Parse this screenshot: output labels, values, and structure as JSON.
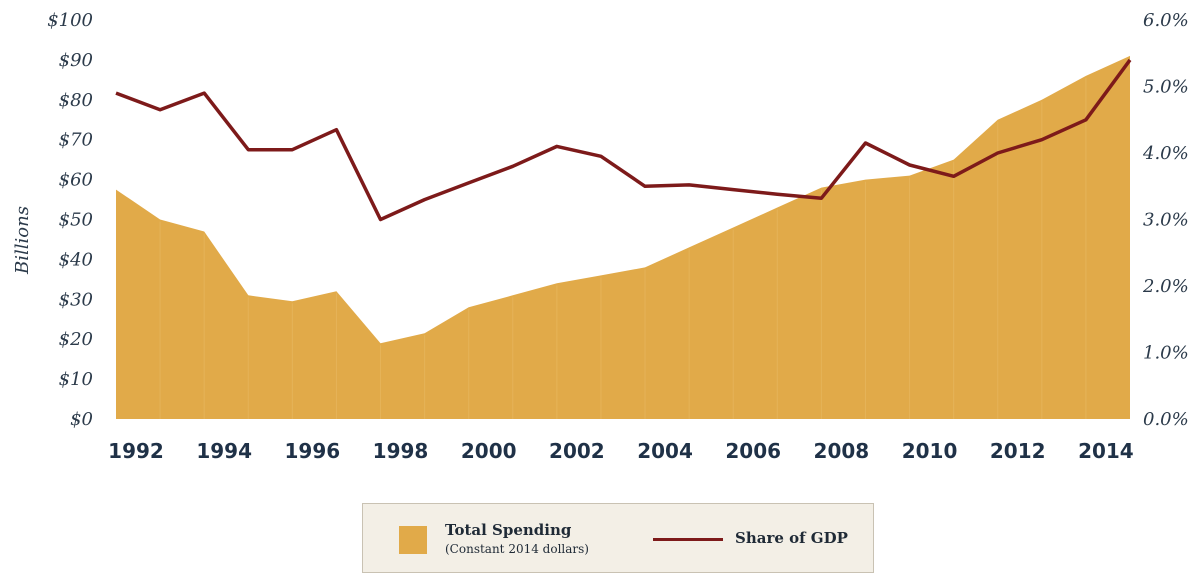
{
  "chart_data": {
    "type": "area",
    "years": [
      1992,
      1993,
      1994,
      1995,
      1996,
      1997,
      1998,
      1999,
      2000,
      2001,
      2002,
      2003,
      2004,
      2005,
      2006,
      2007,
      2008,
      2009,
      2010,
      2011,
      2012,
      2013,
      2014,
      2015
    ],
    "x_tick_labels": [
      "1992",
      "1994",
      "1996",
      "1998",
      "2000",
      "2002",
      "2004",
      "2006",
      "2008",
      "2010",
      "2012",
      "2014"
    ],
    "ylabel": "Billions",
    "y_tick_labels": [
      "$0",
      "$10",
      "$20",
      "$30",
      "$40",
      "$50",
      "$60",
      "$70",
      "$80",
      "$90",
      "$100"
    ],
    "y2_tick_labels": [
      "0.0%",
      "1.0%",
      "2.0%",
      "3.0%",
      "4.0%",
      "5.0%",
      "6.0%"
    ],
    "ylim": [
      0,
      100
    ],
    "y2lim": [
      0,
      6
    ],
    "grid": false,
    "legend_position": "bottom-center",
    "series": [
      {
        "name": "Total Spending",
        "subtitle": "(Constant 2014 dollars)",
        "type": "area",
        "axis": "left",
        "color": "#E1AA49",
        "values": [
          57.5,
          50,
          47,
          31,
          29.5,
          32,
          19,
          21.5,
          28,
          31,
          34,
          36,
          38,
          43,
          48,
          53,
          58,
          60,
          61,
          65,
          75,
          80,
          86,
          91
        ]
      },
      {
        "name": "Share of GDP",
        "type": "line",
        "axis": "right",
        "color": "#7D1A1A",
        "values": [
          4.9,
          4.65,
          4.9,
          4.05,
          4.05,
          4.35,
          3.0,
          3.3,
          3.55,
          3.8,
          4.1,
          3.95,
          3.5,
          3.52,
          3.45,
          3.38,
          3.32,
          4.15,
          3.82,
          3.65,
          4.0,
          4.2,
          4.5,
          5.4
        ]
      }
    ]
  }
}
